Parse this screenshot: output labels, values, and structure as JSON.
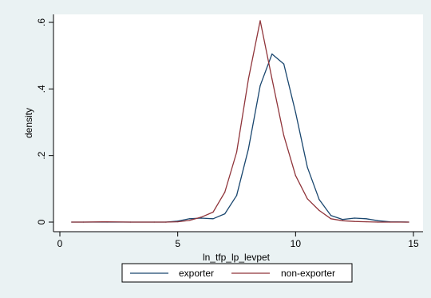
{
  "chart_data": {
    "type": "line",
    "title": "",
    "xlabel": "ln_tfp_lp_levpet",
    "ylabel": "density",
    "xlim": [
      0,
      15
    ],
    "ylim": [
      0,
      0.6
    ],
    "x_ticks": [
      0,
      5,
      10,
      15
    ],
    "x_tick_labels": [
      "0",
      "5",
      "10",
      "15"
    ],
    "y_ticks": [
      0,
      0.2,
      0.4,
      0.6
    ],
    "y_tick_labels": [
      "0",
      ".2",
      ".4",
      ".6"
    ],
    "grid": false,
    "legend_position": "bottom",
    "series": [
      {
        "name": "exporter",
        "color": "#1a476f",
        "x": [
          0.5,
          1.0,
          2.0,
          3.0,
          4.0,
          4.5,
          5.0,
          5.5,
          6.0,
          6.5,
          7.0,
          7.5,
          8.0,
          8.5,
          9.0,
          9.5,
          10.0,
          10.5,
          11.0,
          11.5,
          12.0,
          12.5,
          13.0,
          13.5,
          14.0,
          14.8
        ],
        "y": [
          0.0,
          0.0,
          0.0,
          0.0,
          0.0,
          0.0,
          0.003,
          0.01,
          0.012,
          0.01,
          0.025,
          0.08,
          0.22,
          0.41,
          0.505,
          0.475,
          0.33,
          0.165,
          0.068,
          0.02,
          0.008,
          0.012,
          0.01,
          0.004,
          0.001,
          0.0
        ],
        "y_points": [
          0.0,
          0.0,
          0.0,
          0.0,
          0.0,
          0.0,
          0.003,
          0.01,
          0.012,
          0.01,
          0.025,
          0.08,
          0.22,
          0.41,
          0.505,
          0.475,
          0.33,
          0.165,
          0.068,
          0.02,
          0.008,
          0.012,
          0.01,
          0.004,
          0.001,
          0.0
        ]
      },
      {
        "name": "non-exporter",
        "color": "#90353b",
        "x": [
          0.5,
          1.0,
          2.0,
          3.0,
          4.0,
          4.5,
          5.0,
          5.5,
          6.0,
          6.5,
          7.0,
          7.5,
          8.0,
          8.5,
          9.0,
          9.5,
          10.0,
          10.5,
          11.0,
          11.5,
          12.0,
          12.5,
          13.0,
          13.5,
          14.0,
          14.8
        ],
        "y": [
          0.0,
          0.0,
          0.001,
          0.0,
          0.0,
          0.0,
          0.001,
          0.005,
          0.015,
          0.03,
          0.09,
          0.21,
          0.43,
          0.605,
          0.43,
          0.26,
          0.14,
          0.07,
          0.035,
          0.01,
          0.004,
          0.002,
          0.001,
          0.0,
          0.0,
          0.0
        ],
        "y_points": [
          0.0,
          0.0,
          0.001,
          0.0,
          0.0,
          0.0,
          0.001,
          0.005,
          0.015,
          0.03,
          0.09,
          0.21,
          0.43,
          0.605,
          0.43,
          0.26,
          0.14,
          0.07,
          0.035,
          0.01,
          0.004,
          0.002,
          0.001,
          0.0,
          0.0,
          0.0
        ]
      }
    ]
  }
}
